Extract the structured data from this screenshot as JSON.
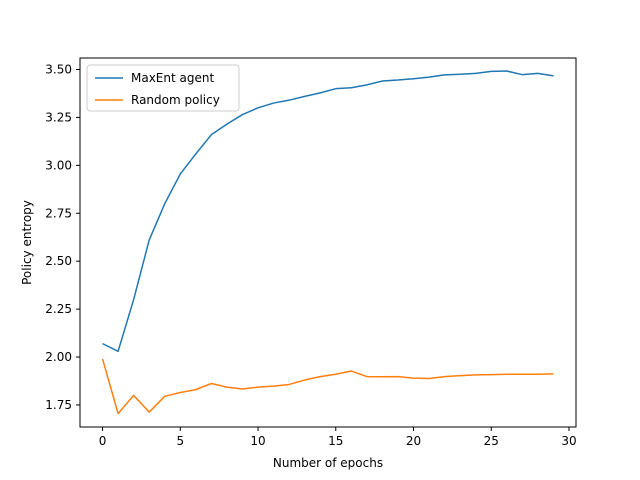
{
  "chart_data": {
    "type": "line",
    "title": "",
    "xlabel": "Number of epochs",
    "ylabel": "Policy entropy",
    "xlim": [
      -1.45,
      30.45
    ],
    "ylim": [
      1.635,
      3.56
    ],
    "xticks": [
      0,
      5,
      10,
      15,
      20,
      25,
      30
    ],
    "xtick_labels": [
      "0",
      "5",
      "10",
      "15",
      "20",
      "25",
      "30"
    ],
    "yticks": [
      1.75,
      2.0,
      2.25,
      2.5,
      2.75,
      3.0,
      3.25,
      3.5
    ],
    "ytick_labels": [
      "1.75",
      "2.00",
      "2.25",
      "2.50",
      "2.75",
      "3.00",
      "3.25",
      "3.50"
    ],
    "grid": false,
    "legend_position": "top-left",
    "x": [
      0,
      1,
      2,
      3,
      4,
      5,
      6,
      7,
      8,
      9,
      10,
      11,
      12,
      13,
      14,
      15,
      16,
      17,
      18,
      19,
      20,
      21,
      22,
      23,
      24,
      25,
      26,
      27,
      28,
      29
    ],
    "series": [
      {
        "name": "MaxEnt agent",
        "color": "#1f77b4",
        "values": [
          2.07,
          2.03,
          2.3,
          2.61,
          2.8,
          2.955,
          3.06,
          3.16,
          3.215,
          3.265,
          3.3,
          3.325,
          3.34,
          3.36,
          3.378,
          3.4,
          3.405,
          3.42,
          3.44,
          3.445,
          3.452,
          3.46,
          3.472,
          3.475,
          3.48,
          3.49,
          3.492,
          3.473,
          3.48,
          3.467
        ]
      },
      {
        "name": "Random policy",
        "color": "#ff7f0e",
        "values": [
          1.99,
          1.705,
          1.8,
          1.713,
          1.795,
          1.815,
          1.83,
          1.862,
          1.843,
          1.833,
          1.843,
          1.848,
          1.857,
          1.88,
          1.898,
          1.91,
          1.927,
          1.898,
          1.897,
          1.898,
          1.89,
          1.888,
          1.898,
          1.903,
          1.907,
          1.908,
          1.91,
          1.91,
          1.91,
          1.912
        ]
      }
    ]
  }
}
